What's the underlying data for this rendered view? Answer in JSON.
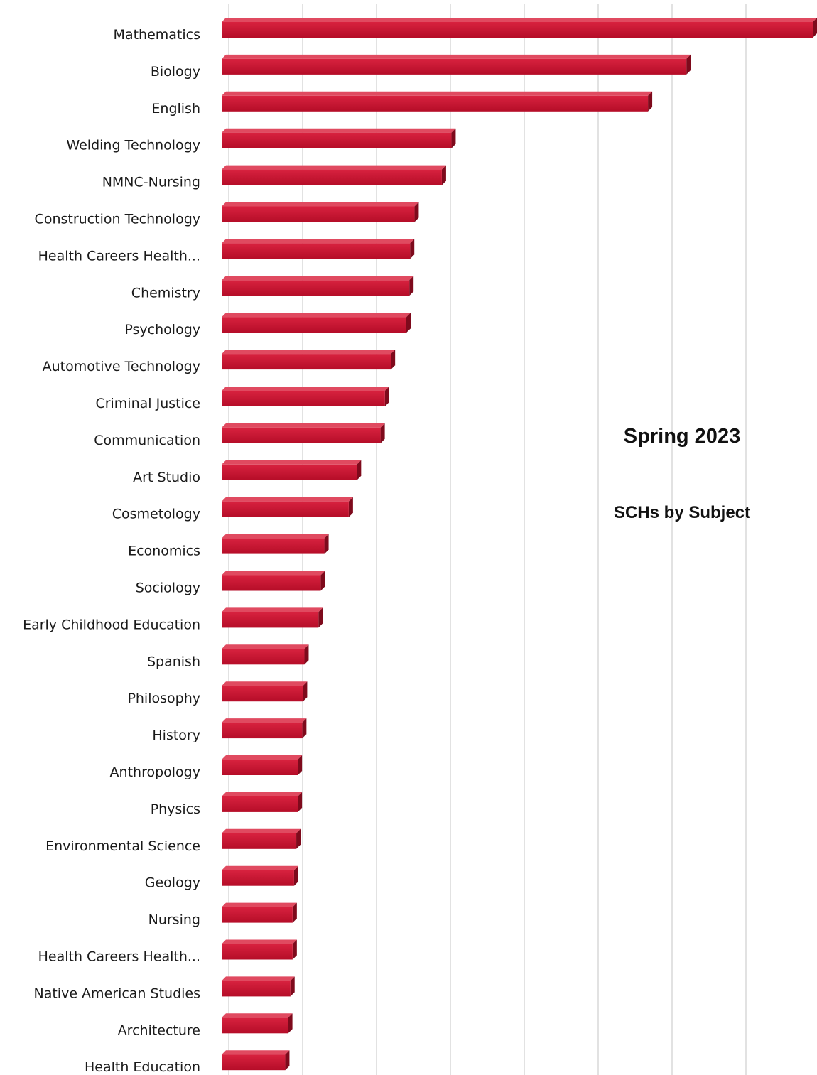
{
  "chart_data": {
    "type": "bar",
    "orientation": "horizontal",
    "title": "Spring 2023",
    "subtitle": "SCHs by Subject",
    "xlabel": "",
    "ylabel": "",
    "grid": true,
    "legend": "none",
    "bar_color": "#c8102e",
    "xlim": [
      0,
      8
    ],
    "categories": [
      "Mathematics",
      "Biology",
      "English",
      "Welding Technology",
      "NMNC-Nursing",
      "Construction Technology",
      "Health Careers Health...",
      "Chemistry",
      "Psychology",
      "Automotive Technology",
      "Criminal Justice",
      "Communication",
      "Art Studio",
      "Cosmetology",
      "Economics",
      "Sociology",
      "Early Childhood Education",
      "Spanish",
      "Philosophy",
      "History",
      "Anthropology",
      "Physics",
      "Environmental Science",
      "Geology",
      "Nursing",
      "Health Careers Health...",
      "Native American Studies",
      "Architecture",
      "Health Education"
    ],
    "values": [
      8.1,
      6.29,
      5.77,
      3.11,
      2.98,
      2.61,
      2.55,
      2.54,
      2.5,
      2.29,
      2.21,
      2.15,
      1.83,
      1.72,
      1.39,
      1.34,
      1.31,
      1.12,
      1.1,
      1.09,
      1.03,
      1.03,
      1.01,
      0.98,
      0.96,
      0.96,
      0.93,
      0.9,
      0.86
    ]
  }
}
